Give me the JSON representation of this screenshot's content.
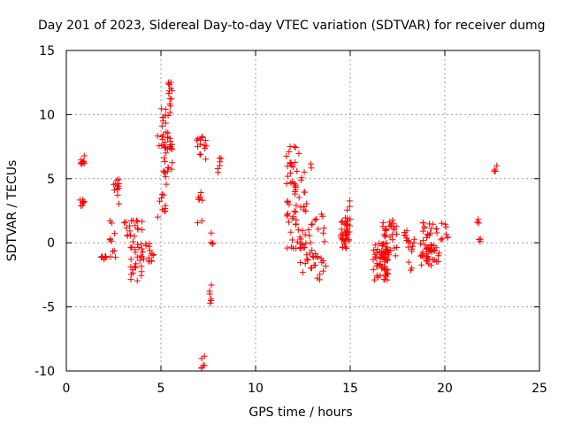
{
  "chart_data": {
    "type": "scatter",
    "title": "Day 201 of 2023, Sidereal Day-to-day VTEC variation (SDTVAR) for receiver dumg",
    "xlabel": "GPS time / hours",
    "ylabel": "SDTVAR / TECUs",
    "xlim": [
      0,
      25
    ],
    "ylim": [
      -10,
      15
    ],
    "xticks": [
      0,
      5,
      10,
      15,
      20,
      25
    ],
    "xtick_labels": [
      "0",
      "5",
      "10",
      "15",
      "20",
      "25"
    ],
    "yticks": [
      -10,
      -5,
      0,
      5,
      10,
      15
    ],
    "ytick_labels": [
      "-10",
      "-5",
      "0",
      "5",
      "10",
      "15"
    ],
    "grid": true,
    "marker": "+",
    "color": "#ff0000",
    "clusters": [
      {
        "x": [
          0.7,
          0.95
        ],
        "y": [
          5.8,
          7.0
        ],
        "n": 10
      },
      {
        "x": [
          0.7,
          0.95
        ],
        "y": [
          2.8,
          3.6
        ],
        "n": 8
      },
      {
        "x": [
          1.8,
          2.1
        ],
        "y": [
          -1.6,
          -1.0
        ],
        "n": 8
      },
      {
        "x": [
          2.3,
          2.6
        ],
        "y": [
          -1.3,
          2.0
        ],
        "n": 10
      },
      {
        "x": [
          2.4,
          2.8
        ],
        "y": [
          3.0,
          5.0
        ],
        "n": 12
      },
      {
        "x": [
          3.0,
          3.4
        ],
        "y": [
          0.5,
          1.8
        ],
        "n": 8
      },
      {
        "x": [
          3.4,
          4.0
        ],
        "y": [
          -3.0,
          2.2
        ],
        "n": 35
      },
      {
        "x": [
          4.0,
          4.6
        ],
        "y": [
          -1.5,
          0.8
        ],
        "n": 16
      },
      {
        "x": [
          4.8,
          5.3
        ],
        "y": [
          2.0,
          8.5
        ],
        "n": 22
      },
      {
        "x": [
          5.0,
          5.5
        ],
        "y": [
          7.0,
          10.5
        ],
        "n": 25
      },
      {
        "x": [
          5.4,
          5.6
        ],
        "y": [
          10.5,
          12.6
        ],
        "n": 12
      },
      {
        "x": [
          5.3,
          5.6
        ],
        "y": [
          5.3,
          8.0
        ],
        "n": 10
      },
      {
        "x": [
          6.9,
          7.4
        ],
        "y": [
          6.5,
          8.3
        ],
        "n": 14
      },
      {
        "x": [
          6.9,
          7.2
        ],
        "y": [
          1.5,
          4.5
        ],
        "n": 8
      },
      {
        "x": [
          7.1,
          7.3
        ],
        "y": [
          -9.8,
          -8.8
        ],
        "n": 6
      },
      {
        "x": [
          7.5,
          7.7
        ],
        "y": [
          -4.8,
          -3.0
        ],
        "n": 6
      },
      {
        "x": [
          7.6,
          7.8
        ],
        "y": [
          -1.0,
          0.8
        ],
        "n": 4
      },
      {
        "x": [
          8.0,
          8.2
        ],
        "y": [
          4.2,
          6.8
        ],
        "n": 6
      },
      {
        "x": [
          11.6,
          12.3
        ],
        "y": [
          3.0,
          7.8
        ],
        "n": 30
      },
      {
        "x": [
          11.6,
          12.5
        ],
        "y": [
          -1.0,
          3.0
        ],
        "n": 25
      },
      {
        "x": [
          12.3,
          13.0
        ],
        "y": [
          -2.5,
          6.2
        ],
        "n": 30
      },
      {
        "x": [
          12.8,
          13.8
        ],
        "y": [
          -3.0,
          2.5
        ],
        "n": 30
      },
      {
        "x": [
          14.5,
          15.0
        ],
        "y": [
          -0.5,
          2.0
        ],
        "n": 40
      },
      {
        "x": [
          14.8,
          15.0
        ],
        "y": [
          2.5,
          3.3
        ],
        "n": 3
      },
      {
        "x": [
          16.2,
          17.0
        ],
        "y": [
          -2.9,
          0.0
        ],
        "n": 55
      },
      {
        "x": [
          16.7,
          17.5
        ],
        "y": [
          -1.5,
          1.8
        ],
        "n": 40
      },
      {
        "x": [
          17.6,
          18.0
        ],
        "y": [
          0.0,
          1.0
        ],
        "n": 6
      },
      {
        "x": [
          18.0,
          18.5
        ],
        "y": [
          -2.2,
          0.5
        ],
        "n": 12
      },
      {
        "x": [
          18.7,
          19.7
        ],
        "y": [
          -1.8,
          1.8
        ],
        "n": 60
      },
      {
        "x": [
          19.8,
          20.2
        ],
        "y": [
          0.0,
          1.6
        ],
        "n": 8
      },
      {
        "x": [
          21.7,
          21.9
        ],
        "y": [
          1.5,
          2.1
        ],
        "n": 3
      },
      {
        "x": [
          21.7,
          21.9
        ],
        "y": [
          -0.2,
          0.3
        ],
        "n": 3
      },
      {
        "x": [
          22.6,
          22.8
        ],
        "y": [
          5.4,
          6.1
        ],
        "n": 4
      }
    ]
  }
}
